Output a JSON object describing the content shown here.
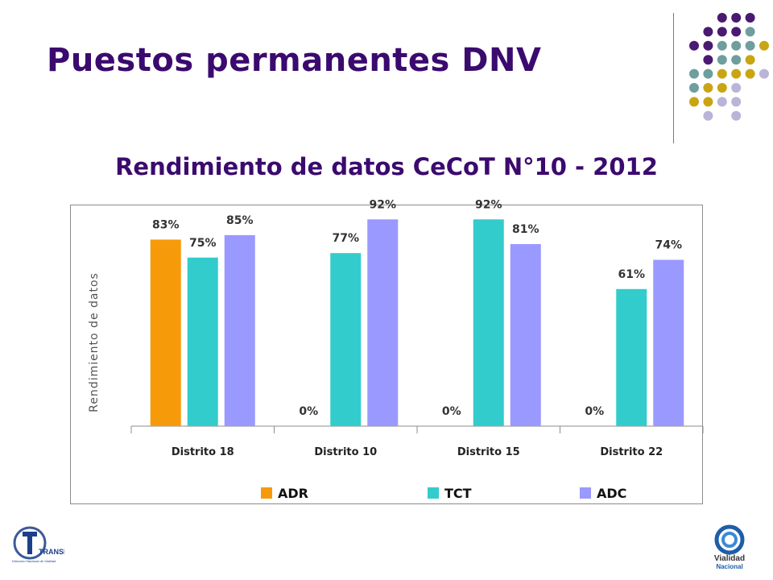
{
  "slide": {
    "title": "Puestos permanentes DNV"
  },
  "logos": {
    "left_text": "TRANSITO",
    "left_subtext": "Dirección Nacional de Vialidad",
    "right_line1": "Vialidad",
    "right_line2": "Nacional"
  },
  "colors": {
    "title": "#3b0a6e",
    "dot_purple": "#4a1a72",
    "dot_teal": "#6e9e9e",
    "dot_gold": "#c9a514",
    "dot_lavender": "#b9b4d8"
  },
  "chart_data": {
    "type": "bar",
    "title": "Rendimiento de datos CeCoT N°10 - 2012",
    "ylabel": "Rendimiento de datos",
    "xlabel": "",
    "categories": [
      "Distrito 18",
      "Distrito 10",
      "Distrito 15",
      "Distrito 22"
    ],
    "series": [
      {
        "name": "ADR",
        "color": "#f79a0a",
        "values": [
          83,
          0,
          0,
          0
        ],
        "labels": [
          "83%",
          "0%",
          "0%",
          "0%"
        ]
      },
      {
        "name": "TCT",
        "color": "#33cccc",
        "values": [
          75,
          77,
          92,
          61
        ],
        "labels": [
          "75%",
          "77%",
          "92%",
          "61%"
        ]
      },
      {
        "name": "ADC",
        "color": "#9999ff",
        "values": [
          85,
          92,
          81,
          74
        ],
        "labels": [
          "85%",
          "92%",
          "81%",
          "74%"
        ]
      }
    ],
    "ylim": [
      0,
      100
    ],
    "grid": false,
    "legend_position": "bottom"
  }
}
